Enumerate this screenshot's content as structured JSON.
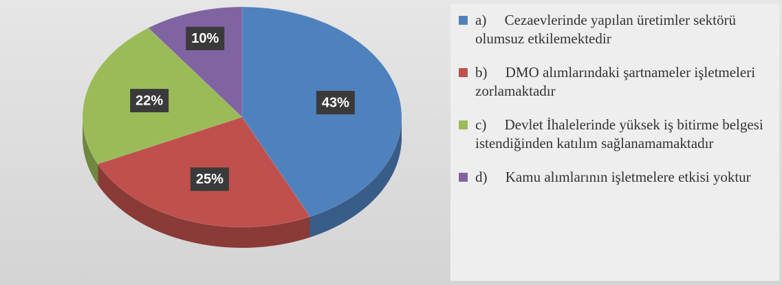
{
  "chart_data": {
    "type": "pie",
    "categories": [
      "a)     Cezaevlerinde yapılan üretimler sektörü olumsuz etkilemektedir",
      "b)     DMO alımlarındaki şartnameler işletmeleri zorlamaktadır",
      "c)     Devlet İhalelerinde yüksek iş bitirme belgesi istendiğinden katılım sağlanamamaktadır",
      "d)     Kamu alımlarının işletmelere etkisi yoktur"
    ],
    "values": [
      43,
      25,
      22,
      10
    ],
    "value_labels": [
      "43%",
      "25%",
      "22%",
      "10%"
    ],
    "colors": [
      "#4f81bd",
      "#c0504d",
      "#9bbb59",
      "#8064a2"
    ],
    "legend": "right"
  }
}
